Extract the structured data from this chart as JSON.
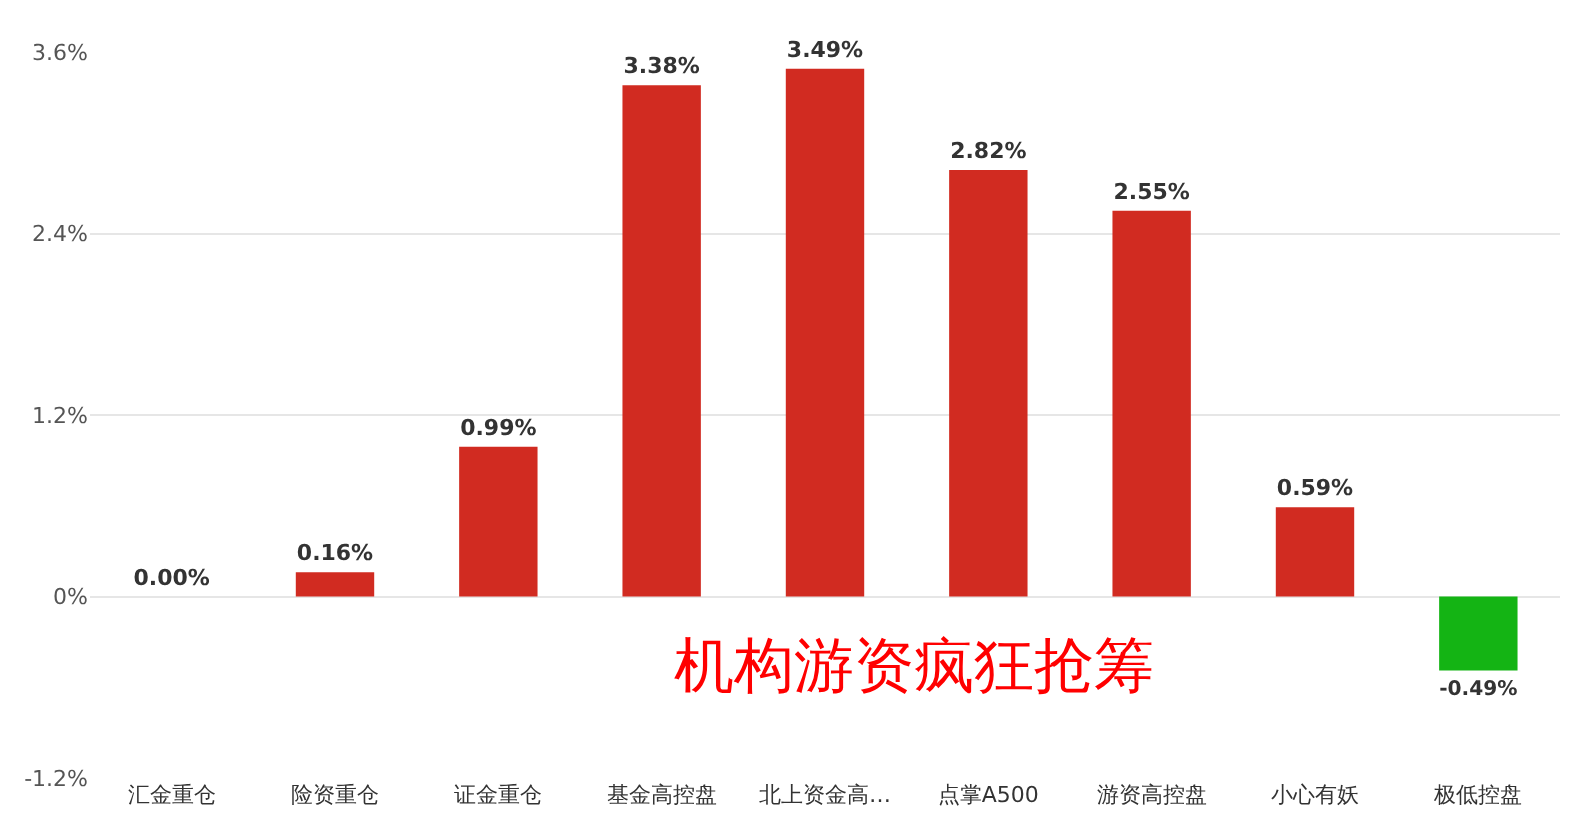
{
  "chart_data": {
    "type": "bar",
    "categories": [
      "汇金重仓",
      "险资重仓",
      "证金重仓",
      "基金高控盘",
      "北上资金高…",
      "点掌A500",
      "游资高控盘",
      "小心有妖",
      "极低控盘"
    ],
    "values": [
      0.0,
      0.16,
      0.99,
      3.38,
      3.49,
      2.82,
      2.55,
      0.59,
      -0.49
    ],
    "colors": [
      "#d12b21",
      "#d12b21",
      "#d12b21",
      "#d12b21",
      "#d12b21",
      "#d12b21",
      "#d12b21",
      "#d12b21",
      "#14b414"
    ],
    "value_labels": [
      "0.00%",
      "0.16%",
      "0.99%",
      "3.38%",
      "3.49%",
      "2.82%",
      "2.55%",
      "0.59%",
      "-0.49%"
    ],
    "ylim": [
      -1.2,
      3.6
    ],
    "yticks": [
      {
        "value": -1.2,
        "label": "-1.2%"
      },
      {
        "value": 0,
        "label": "0%"
      },
      {
        "value": 1.2,
        "label": "1.2%"
      },
      {
        "value": 2.4,
        "label": "2.4%"
      },
      {
        "value": 3.6,
        "label": "3.6%"
      }
    ],
    "grid": "y",
    "annotations": [
      "机构游资疯狂抢筹"
    ]
  }
}
